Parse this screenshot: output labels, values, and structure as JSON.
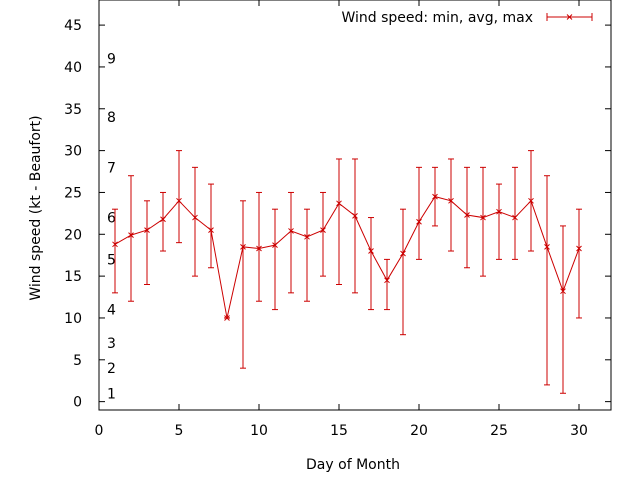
{
  "chart_data": {
    "type": "line",
    "title": "",
    "xlabel": "Day of Month",
    "ylabel": "Wind speed (kt - Beaufort)",
    "xlim": [
      0,
      32
    ],
    "ylim": [
      -1,
      48
    ],
    "xticks": [
      0,
      5,
      10,
      15,
      20,
      25,
      30
    ],
    "yticks": [
      0,
      5,
      10,
      15,
      20,
      25,
      30,
      35,
      40,
      45
    ],
    "grid": false,
    "legend_position": "top-right",
    "beaufort_labels": [
      {
        "label": "1",
        "y": 1
      },
      {
        "label": "2",
        "y": 4
      },
      {
        "label": "3",
        "y": 7
      },
      {
        "label": "4",
        "y": 11
      },
      {
        "label": "5",
        "y": 17
      },
      {
        "label": "6",
        "y": 22
      },
      {
        "label": "7",
        "y": 28
      },
      {
        "label": "8",
        "y": 34
      },
      {
        "label": "9",
        "y": 41
      }
    ],
    "series": [
      {
        "name": "Wind speed: min, avg, max",
        "color": "#cc0000",
        "x": [
          1,
          2,
          3,
          4,
          5,
          6,
          7,
          8,
          9,
          10,
          11,
          12,
          13,
          14,
          15,
          16,
          17,
          18,
          19,
          20,
          21,
          22,
          23,
          24,
          25,
          26,
          27,
          28,
          29,
          30
        ],
        "avg": [
          18.8,
          19.9,
          20.5,
          21.8,
          24.0,
          22.0,
          20.5,
          10.0,
          18.5,
          18.3,
          18.7,
          20.4,
          19.7,
          20.5,
          23.7,
          22.2,
          18.0,
          14.5,
          17.7,
          21.5,
          24.5,
          24.0,
          22.3,
          22.0,
          22.7,
          22.0,
          24.0,
          18.5,
          13.2,
          18.3
        ],
        "min": [
          13,
          12,
          14,
          18,
          19,
          15,
          16,
          10,
          4,
          12,
          11,
          13,
          12,
          15,
          14,
          13,
          11,
          11,
          8,
          17,
          21,
          18,
          16,
          15,
          17,
          17,
          18,
          2,
          1,
          10
        ],
        "max": [
          23,
          27,
          24,
          25,
          30,
          28,
          26,
          10,
          24,
          25,
          23,
          25,
          23,
          25,
          29,
          29,
          22,
          17,
          23,
          28,
          28,
          29,
          28,
          28,
          26,
          28,
          30,
          27,
          21,
          23
        ]
      }
    ]
  }
}
